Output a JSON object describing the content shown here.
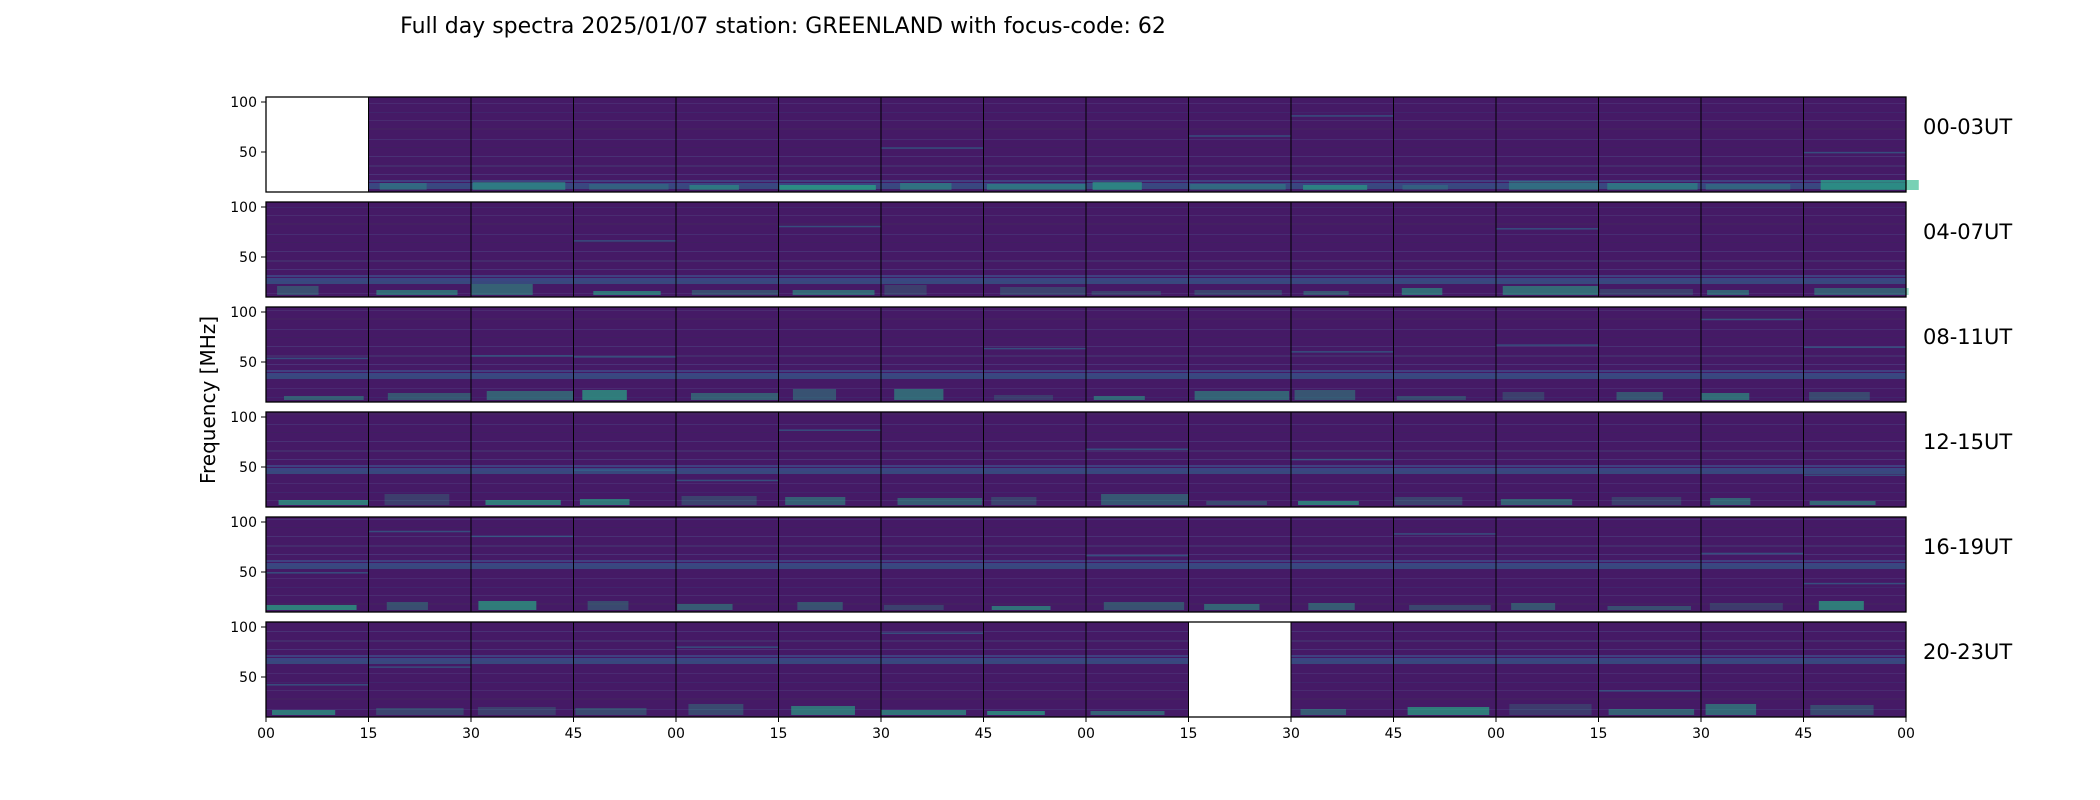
{
  "chart_data": {
    "type": "heatmap",
    "title": "Full day spectra 2025/01/07 station: GREENLAND with focus-code: 62",
    "ylabel": "Frequency [MHz]",
    "xlabel": "",
    "yticks": [
      "100",
      "50"
    ],
    "xticks": [
      "00",
      "15",
      "30",
      "45",
      "00",
      "15",
      "30",
      "45",
      "00",
      "15",
      "30",
      "45",
      "00",
      "15",
      "30",
      "45",
      "00"
    ],
    "ylim": [
      10,
      105
    ],
    "colormap": "viridis",
    "row_labels": [
      "00-03UT",
      "04-07UT",
      "08-11UT",
      "12-15UT",
      "16-19UT",
      "20-23UT"
    ],
    "panels_per_row": 16,
    "panel_minutes": 15,
    "missing_panels": [
      {
        "row": "00-03UT",
        "panel": 1
      },
      {
        "row": "20-23UT",
        "panel": 10
      }
    ],
    "colors": {
      "background": "#451a66",
      "low": "#440154",
      "mid": "#2f6f8e",
      "high": "#24b487"
    }
  }
}
